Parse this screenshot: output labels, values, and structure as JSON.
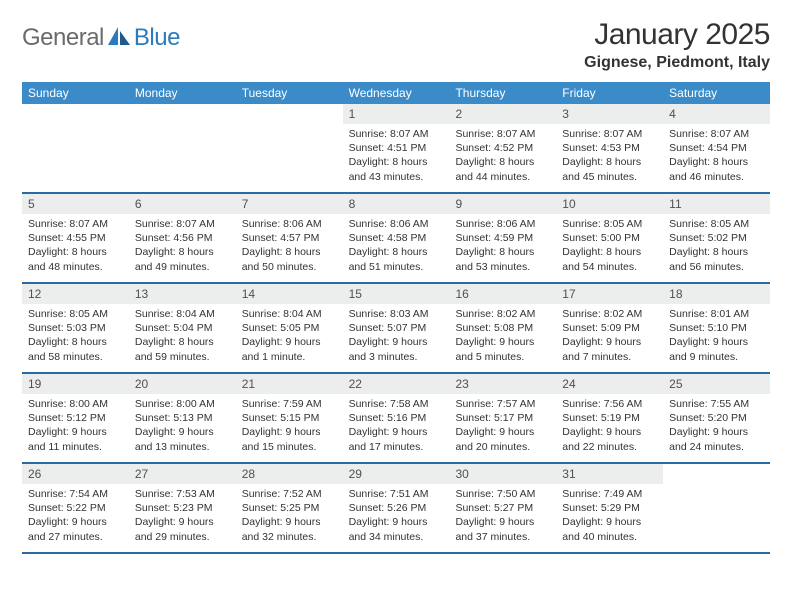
{
  "logo": {
    "text1": "General",
    "text2": "Blue"
  },
  "title": "January 2025",
  "location": "Gignese, Piedmont, Italy",
  "colors": {
    "header_bg": "#3b8bc8",
    "row_border": "#2b6aa0",
    "daynum_bg": "#eceded",
    "logo_gray": "#6b6b6b",
    "logo_blue": "#2b7bbd"
  },
  "weekdays": [
    "Sunday",
    "Monday",
    "Tuesday",
    "Wednesday",
    "Thursday",
    "Friday",
    "Saturday"
  ],
  "weeks": [
    [
      null,
      null,
      null,
      {
        "n": "1",
        "sr": "8:07 AM",
        "ss": "4:51 PM",
        "dl": "8 hours and 43 minutes."
      },
      {
        "n": "2",
        "sr": "8:07 AM",
        "ss": "4:52 PM",
        "dl": "8 hours and 44 minutes."
      },
      {
        "n": "3",
        "sr": "8:07 AM",
        "ss": "4:53 PM",
        "dl": "8 hours and 45 minutes."
      },
      {
        "n": "4",
        "sr": "8:07 AM",
        "ss": "4:54 PM",
        "dl": "8 hours and 46 minutes."
      }
    ],
    [
      {
        "n": "5",
        "sr": "8:07 AM",
        "ss": "4:55 PM",
        "dl": "8 hours and 48 minutes."
      },
      {
        "n": "6",
        "sr": "8:07 AM",
        "ss": "4:56 PM",
        "dl": "8 hours and 49 minutes."
      },
      {
        "n": "7",
        "sr": "8:06 AM",
        "ss": "4:57 PM",
        "dl": "8 hours and 50 minutes."
      },
      {
        "n": "8",
        "sr": "8:06 AM",
        "ss": "4:58 PM",
        "dl": "8 hours and 51 minutes."
      },
      {
        "n": "9",
        "sr": "8:06 AM",
        "ss": "4:59 PM",
        "dl": "8 hours and 53 minutes."
      },
      {
        "n": "10",
        "sr": "8:05 AM",
        "ss": "5:00 PM",
        "dl": "8 hours and 54 minutes."
      },
      {
        "n": "11",
        "sr": "8:05 AM",
        "ss": "5:02 PM",
        "dl": "8 hours and 56 minutes."
      }
    ],
    [
      {
        "n": "12",
        "sr": "8:05 AM",
        "ss": "5:03 PM",
        "dl": "8 hours and 58 minutes."
      },
      {
        "n": "13",
        "sr": "8:04 AM",
        "ss": "5:04 PM",
        "dl": "8 hours and 59 minutes."
      },
      {
        "n": "14",
        "sr": "8:04 AM",
        "ss": "5:05 PM",
        "dl": "9 hours and 1 minute."
      },
      {
        "n": "15",
        "sr": "8:03 AM",
        "ss": "5:07 PM",
        "dl": "9 hours and 3 minutes."
      },
      {
        "n": "16",
        "sr": "8:02 AM",
        "ss": "5:08 PM",
        "dl": "9 hours and 5 minutes."
      },
      {
        "n": "17",
        "sr": "8:02 AM",
        "ss": "5:09 PM",
        "dl": "9 hours and 7 minutes."
      },
      {
        "n": "18",
        "sr": "8:01 AM",
        "ss": "5:10 PM",
        "dl": "9 hours and 9 minutes."
      }
    ],
    [
      {
        "n": "19",
        "sr": "8:00 AM",
        "ss": "5:12 PM",
        "dl": "9 hours and 11 minutes."
      },
      {
        "n": "20",
        "sr": "8:00 AM",
        "ss": "5:13 PM",
        "dl": "9 hours and 13 minutes."
      },
      {
        "n": "21",
        "sr": "7:59 AM",
        "ss": "5:15 PM",
        "dl": "9 hours and 15 minutes."
      },
      {
        "n": "22",
        "sr": "7:58 AM",
        "ss": "5:16 PM",
        "dl": "9 hours and 17 minutes."
      },
      {
        "n": "23",
        "sr": "7:57 AM",
        "ss": "5:17 PM",
        "dl": "9 hours and 20 minutes."
      },
      {
        "n": "24",
        "sr": "7:56 AM",
        "ss": "5:19 PM",
        "dl": "9 hours and 22 minutes."
      },
      {
        "n": "25",
        "sr": "7:55 AM",
        "ss": "5:20 PM",
        "dl": "9 hours and 24 minutes."
      }
    ],
    [
      {
        "n": "26",
        "sr": "7:54 AM",
        "ss": "5:22 PM",
        "dl": "9 hours and 27 minutes."
      },
      {
        "n": "27",
        "sr": "7:53 AM",
        "ss": "5:23 PM",
        "dl": "9 hours and 29 minutes."
      },
      {
        "n": "28",
        "sr": "7:52 AM",
        "ss": "5:25 PM",
        "dl": "9 hours and 32 minutes."
      },
      {
        "n": "29",
        "sr": "7:51 AM",
        "ss": "5:26 PM",
        "dl": "9 hours and 34 minutes."
      },
      {
        "n": "30",
        "sr": "7:50 AM",
        "ss": "5:27 PM",
        "dl": "9 hours and 37 minutes."
      },
      {
        "n": "31",
        "sr": "7:49 AM",
        "ss": "5:29 PM",
        "dl": "9 hours and 40 minutes."
      },
      null
    ]
  ],
  "labels": {
    "sunrise": "Sunrise:",
    "sunset": "Sunset:",
    "daylight": "Daylight:"
  }
}
